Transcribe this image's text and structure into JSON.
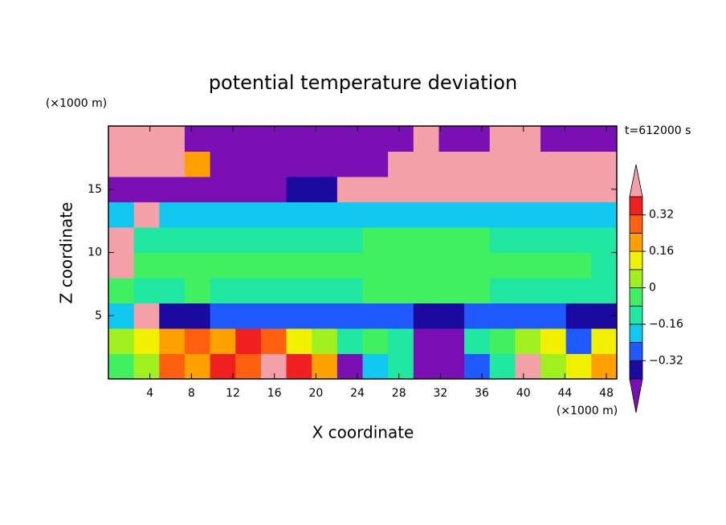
{
  "chart_data": {
    "type": "contour",
    "title": "potential temperature deviation",
    "xlabel": "X coordinate",
    "ylabel": "Z coordinate",
    "x_unit": "(×1000 m)",
    "y_unit": "(×1000 m)",
    "annotation": "t=612000 s",
    "xlim": [
      0,
      49
    ],
    "xticks": [
      4,
      8,
      12,
      16,
      20,
      24,
      28,
      32,
      36,
      40,
      44,
      48
    ],
    "ylim": [
      0,
      20
    ],
    "yticks": [
      5,
      10,
      15
    ],
    "levels": [
      -0.4,
      -0.32,
      -0.24,
      -0.16,
      -0.08,
      0,
      0.08,
      0.16,
      0.24,
      0.32,
      0.4
    ],
    "colors": [
      "#7a10b4",
      "#1a0aa0",
      "#1e5aff",
      "#10c8f0",
      "#20e8a0",
      "#40f060",
      "#a0f020",
      "#f0f000",
      "#ffa000",
      "#ff6010",
      "#f02020",
      "#f4a0a8"
    ],
    "colorbar_ticks": [
      {
        "value": 0.32,
        "label": "0.32"
      },
      {
        "value": 0.16,
        "label": "0.16"
      },
      0,
      {
        "value": -0.16,
        "label": "−0.16"
      },
      {
        "value": -0.32,
        "label": "−0.32"
      }
    ],
    "z": [
      [
        -0.04,
        0.04,
        0.28,
        0.2,
        0.36,
        0.28,
        0.45,
        0.36,
        0.2,
        -0.45,
        -0.2,
        -0.12,
        -0.45,
        -0.45,
        -0.28,
        -0.12,
        0.45,
        0.04,
        0.12,
        0.2
      ],
      [
        0.04,
        0.12,
        0.2,
        0.28,
        0.2,
        0.36,
        0.28,
        0.12,
        0.04,
        -0.12,
        -0.04,
        -0.12,
        -0.45,
        -0.45,
        -0.12,
        -0.04,
        0.04,
        0.12,
        -0.28,
        0.12
      ],
      [
        -0.2,
        0.45,
        -0.36,
        -0.36,
        -0.28,
        -0.28,
        -0.28,
        -0.28,
        -0.28,
        -0.28,
        -0.28,
        -0.28,
        -0.36,
        -0.36,
        -0.28,
        -0.28,
        -0.28,
        -0.28,
        -0.36,
        -0.36
      ],
      [
        -0.04,
        -0.12,
        -0.12,
        -0.04,
        -0.12,
        -0.12,
        -0.12,
        -0.12,
        -0.12,
        -0.12,
        -0.04,
        -0.04,
        -0.04,
        -0.04,
        -0.04,
        -0.12,
        -0.12,
        -0.12,
        -0.12,
        -0.12
      ],
      [
        0.45,
        -0.04,
        -0.04,
        -0.04,
        -0.04,
        -0.04,
        -0.04,
        -0.04,
        -0.04,
        -0.04,
        -0.04,
        -0.04,
        -0.04,
        -0.04,
        -0.04,
        -0.04,
        -0.04,
        -0.04,
        -0.04,
        -0.12
      ],
      [
        0.45,
        -0.12,
        -0.12,
        -0.12,
        -0.12,
        -0.12,
        -0.12,
        -0.12,
        -0.12,
        -0.12,
        -0.04,
        -0.04,
        -0.04,
        -0.04,
        -0.04,
        -0.12,
        -0.12,
        -0.12,
        -0.12,
        -0.12
      ],
      [
        -0.2,
        0.45,
        -0.2,
        -0.2,
        -0.2,
        -0.2,
        -0.2,
        -0.2,
        -0.2,
        -0.2,
        -0.2,
        -0.2,
        -0.2,
        -0.2,
        -0.2,
        -0.2,
        -0.2,
        -0.2,
        -0.2,
        -0.2
      ],
      [
        -0.45,
        -0.45,
        -0.45,
        -0.45,
        -0.45,
        -0.45,
        -0.45,
        -0.36,
        -0.36,
        0.45,
        0.45,
        0.45,
        0.45,
        0.45,
        0.45,
        0.45,
        0.45,
        0.45,
        0.45,
        0.45
      ],
      [
        0.45,
        0.45,
        0.45,
        0.2,
        -0.45,
        -0.45,
        -0.45,
        -0.45,
        -0.45,
        -0.45,
        -0.45,
        0.45,
        0.45,
        0.45,
        0.45,
        0.45,
        0.45,
        0.45,
        0.45,
        0.45
      ],
      [
        0.45,
        0.45,
        0.45,
        -0.45,
        -0.45,
        -0.45,
        -0.45,
        -0.45,
        -0.45,
        -0.45,
        -0.45,
        -0.45,
        0.45,
        -0.45,
        -0.45,
        0.45,
        0.45,
        -0.45,
        -0.45,
        -0.45
      ]
    ]
  }
}
